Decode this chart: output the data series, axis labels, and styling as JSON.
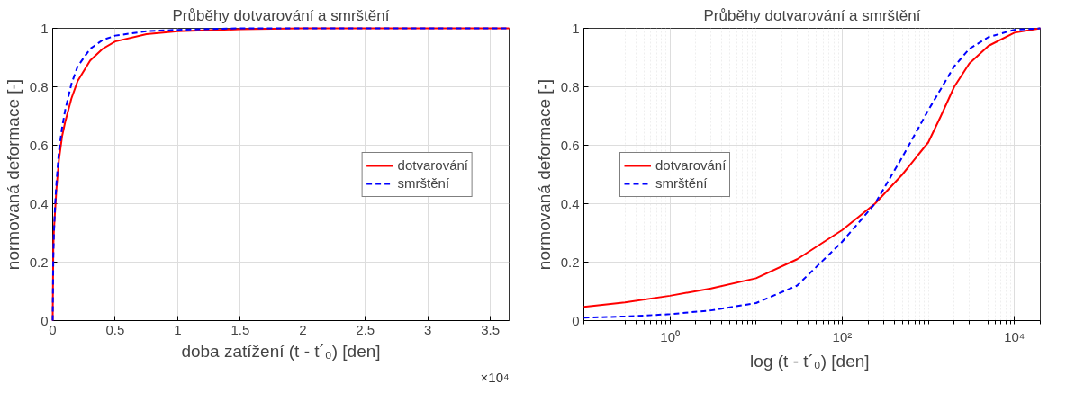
{
  "chart_data": [
    {
      "type": "line",
      "title": "Průběhy dotvarování a smrštění",
      "xlabel": "doba zatížení (t - t´₀) [den]",
      "ylabel": "normovaná deformace [-]",
      "annotations": [
        "×10⁴"
      ],
      "xlim": [
        0,
        3.65
      ],
      "xticks": [
        0,
        0.5,
        1,
        1.5,
        2,
        2.5,
        3,
        3.5
      ],
      "ylim": [
        0,
        1
      ],
      "yticks": [
        0,
        0.2,
        0.4,
        0.6,
        0.8,
        1
      ],
      "grid": true,
      "legend": "right",
      "series": [
        {
          "name": "dotvarování",
          "color": "#ff0000",
          "line_style": "solid",
          "x": [
            0,
            0.005,
            0.01,
            0.02,
            0.03,
            0.05,
            0.075,
            0.1,
            0.15,
            0.2,
            0.3,
            0.4,
            0.5,
            0.75,
            1,
            1.5,
            2,
            3,
            3.65
          ],
          "values": [
            0,
            0.25,
            0.31,
            0.38,
            0.45,
            0.55,
            0.63,
            0.68,
            0.76,
            0.82,
            0.89,
            0.93,
            0.955,
            0.98,
            0.99,
            0.997,
            1,
            1,
            1
          ]
        },
        {
          "name": "smrštění",
          "color": "#0000ff",
          "line_style": "dashed",
          "x": [
            0,
            0.005,
            0.01,
            0.02,
            0.03,
            0.05,
            0.075,
            0.1,
            0.15,
            0.2,
            0.3,
            0.4,
            0.5,
            0.75,
            1,
            1.5,
            2,
            3,
            3.65
          ],
          "values": [
            0,
            0.22,
            0.3,
            0.4,
            0.47,
            0.58,
            0.66,
            0.72,
            0.81,
            0.87,
            0.93,
            0.96,
            0.975,
            0.99,
            0.995,
            1,
            1,
            1,
            1
          ]
        }
      ]
    },
    {
      "type": "line",
      "title": "Průběhy dotvarování a smrštění",
      "xlabel": "log (t - t´₀)  [den]",
      "ylabel": "normovaná deformace [-]",
      "log": "x",
      "xlim": [
        0.1,
        20000
      ],
      "xticks": [
        {
          "value": 1,
          "label": "10⁰"
        },
        {
          "value": 100,
          "label": "10²"
        },
        {
          "value": 10000,
          "label": "10⁴"
        }
      ],
      "ylim": [
        0,
        1
      ],
      "yticks": [
        0,
        0.2,
        0.4,
        0.6,
        0.8,
        1
      ],
      "grid": true,
      "legend": "left",
      "series": [
        {
          "name": "dotvarování",
          "color": "#ff0000",
          "line_style": "solid",
          "x": [
            0.1,
            0.3,
            1,
            3,
            10,
            30,
            100,
            240,
            500,
            1000,
            1400,
            2000,
            3000,
            5000,
            10000,
            20000
          ],
          "values": [
            0.047,
            0.062,
            0.085,
            0.11,
            0.145,
            0.21,
            0.31,
            0.4,
            0.5,
            0.61,
            0.7,
            0.8,
            0.88,
            0.94,
            0.985,
            1
          ]
        },
        {
          "name": "smrštění",
          "color": "#0000ff",
          "line_style": "dashed",
          "x": [
            0.1,
            0.3,
            1,
            3,
            10,
            30,
            100,
            240,
            500,
            1000,
            2000,
            3000,
            5000,
            10000,
            20000
          ],
          "values": [
            0.01,
            0.014,
            0.022,
            0.035,
            0.06,
            0.12,
            0.27,
            0.4,
            0.56,
            0.72,
            0.87,
            0.93,
            0.97,
            0.995,
            1
          ]
        }
      ]
    }
  ]
}
